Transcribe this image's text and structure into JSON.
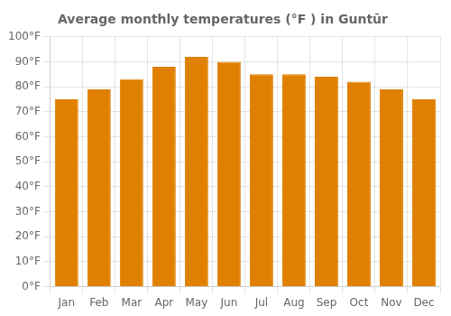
{
  "chart_data": {
    "type": "bar",
    "title": "Average monthly temperatures (°F ) in Guntūr",
    "categories": [
      "Jan",
      "Feb",
      "Mar",
      "Apr",
      "May",
      "Jun",
      "Jul",
      "Aug",
      "Sep",
      "Oct",
      "Nov",
      "Dec"
    ],
    "values": [
      75,
      79,
      83,
      88,
      92,
      90,
      85,
      85,
      84,
      82,
      79,
      75
    ],
    "color": "#E08000",
    "ylim": [
      0,
      100
    ],
    "yticks": [
      {
        "value": 0,
        "label": "0°F"
      },
      {
        "value": 10,
        "label": "10°F"
      },
      {
        "value": 20,
        "label": "20°F"
      },
      {
        "value": 30,
        "label": "30°F"
      },
      {
        "value": 40,
        "label": "40°F"
      },
      {
        "value": 50,
        "label": "50°F"
      },
      {
        "value": 60,
        "label": "60°F"
      },
      {
        "value": 70,
        "label": "70°F"
      },
      {
        "value": 80,
        "label": "80°F"
      },
      {
        "value": 90,
        "label": "90°F"
      },
      {
        "value": 100,
        "label": "100°F"
      }
    ],
    "grid": true
  }
}
